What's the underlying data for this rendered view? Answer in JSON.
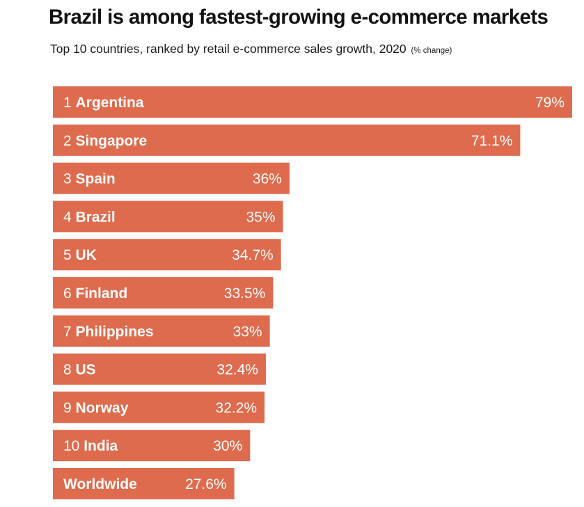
{
  "title": "Brazil is among fastest-growing e-commerce markets",
  "subtitle": "Top 10 countries, ranked by retail e-commerce sales growth, 2020",
  "unit_note": "(% change)",
  "bar_color": "#de6b4d",
  "chart_data": {
    "type": "bar",
    "orientation": "horizontal",
    "categories": [
      "1 Argentina",
      "2 Singapore",
      "3 Spain",
      "4 Brazil",
      "5 UK",
      "6 Finland",
      "7 Philippines",
      "8 US",
      "9 Norway",
      "10 India",
      "Worldwide"
    ],
    "ranks": [
      "1",
      "2",
      "3",
      "4",
      "5",
      "6",
      "7",
      "8",
      "9",
      "10",
      ""
    ],
    "countries": [
      "Argentina",
      "Singapore",
      "Spain",
      "Brazil",
      "UK",
      "Finland",
      "Philippines",
      "US",
      "Norway",
      "India",
      "Worldwide"
    ],
    "values": [
      79,
      71.1,
      36,
      35,
      34.7,
      33.5,
      33,
      32.4,
      32.2,
      30,
      27.6
    ],
    "value_labels": [
      "79%",
      "71.1%",
      "36%",
      "35%",
      "34.7%",
      "33.5%",
      "33%",
      "32.4%",
      "32.2%",
      "30%",
      "27.6%"
    ],
    "xlim": [
      0,
      79
    ],
    "grid": false,
    "legend": "none"
  }
}
